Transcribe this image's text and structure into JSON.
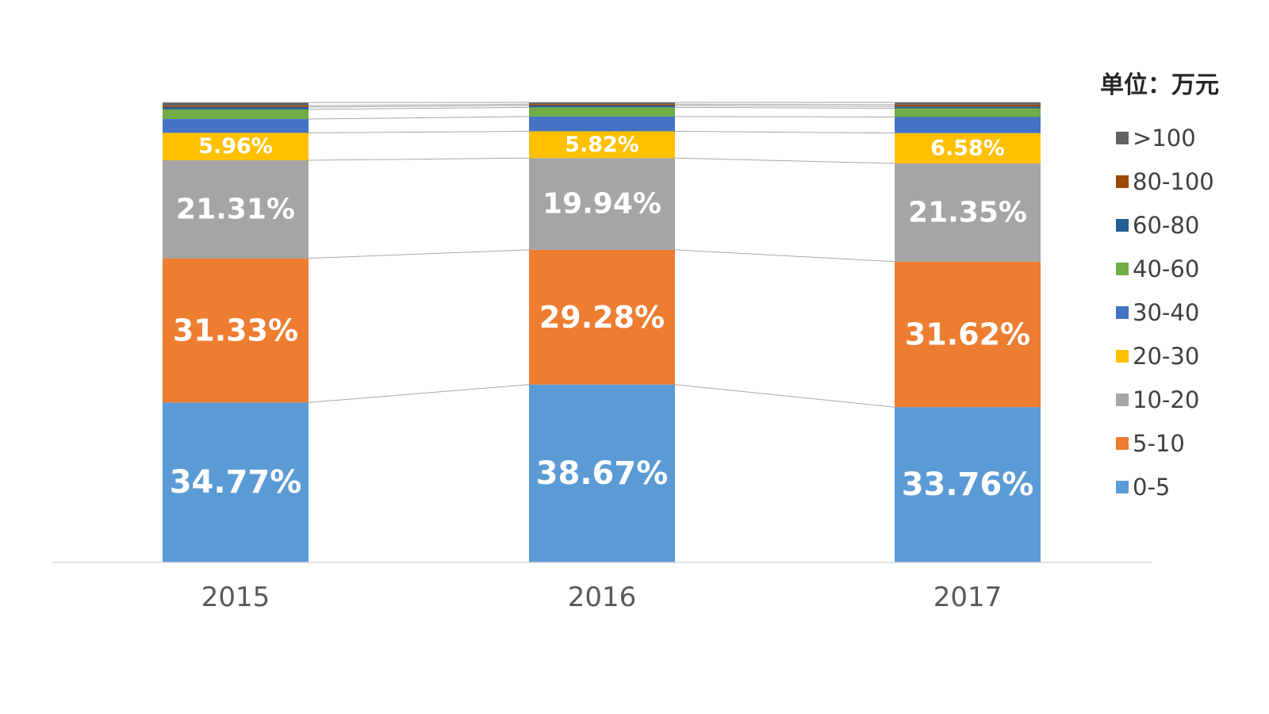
{
  "chart_data": {
    "type": "bar",
    "stacked": true,
    "normalized_percent": true,
    "unit_label": "单位：万元",
    "categories": [
      "2015",
      "2016",
      "2017"
    ],
    "series": [
      {
        "name": "0-5",
        "color": "#5B9BD5",
        "values": [
          34.77,
          38.67,
          33.76
        ],
        "labels": [
          "34.77%",
          "38.67%",
          "33.76%"
        ]
      },
      {
        "name": "5-10",
        "color": "#ED7D31",
        "values": [
          31.33,
          29.28,
          31.62
        ],
        "labels": [
          "31.33%",
          "29.28%",
          "31.62%"
        ]
      },
      {
        "name": "10-20",
        "color": "#A5A5A5",
        "values": [
          21.31,
          19.94,
          21.35
        ],
        "labels": [
          "21.31%",
          "19.94%",
          "21.35%"
        ]
      },
      {
        "name": "20-30",
        "color": "#FFC000",
        "values": [
          5.96,
          5.82,
          6.58
        ],
        "labels": [
          "5.96%",
          "5.82%",
          "6.58%"
        ]
      },
      {
        "name": "30-40",
        "color": "#4472C4",
        "values": [
          3.0,
          3.2,
          3.5
        ],
        "labels": [
          "",
          "",
          ""
        ]
      },
      {
        "name": "40-60",
        "color": "#70AD47",
        "values": [
          2.1,
          2.0,
          1.9
        ],
        "labels": [
          "",
          "",
          ""
        ]
      },
      {
        "name": "60-80",
        "color": "#255E91",
        "values": [
          0.5,
          0.4,
          0.4
        ],
        "labels": [
          "",
          "",
          ""
        ]
      },
      {
        "name": "80-100",
        "color": "#9E480E",
        "values": [
          0.3,
          0.3,
          0.4
        ],
        "labels": [
          "",
          "",
          ""
        ]
      },
      {
        "name": ">100",
        "color": "#636363",
        "values": [
          0.7,
          0.4,
          0.5
        ],
        "labels": [
          "",
          "",
          ""
        ]
      }
    ],
    "legend_position": "right",
    "grid": false,
    "series_lines": true
  }
}
